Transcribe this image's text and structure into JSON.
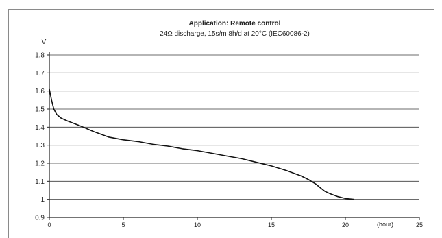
{
  "chart_data": {
    "type": "line",
    "title": "Application: Remote control",
    "subtitle": "24Ω discharge, 15s/m 8h/d at 20°C (IEC60086-2)",
    "ylabel": "V",
    "xlabel": "(hour)",
    "xlim": [
      0,
      25
    ],
    "ylim": [
      0.9,
      1.8
    ],
    "x_ticks": [
      0,
      5,
      10,
      15,
      20,
      25
    ],
    "y_ticks": [
      0.9,
      1,
      1.1,
      1.2,
      1.3,
      1.4,
      1.5,
      1.6,
      1.7,
      1.8
    ],
    "x_tick_labels": [
      "0",
      "5",
      "10",
      "15",
      "20",
      "25"
    ],
    "y_tick_labels": [
      "0.9",
      "1",
      "1.1",
      "1.2",
      "1.3",
      "1.4",
      "1.5",
      "1.6",
      "1.7",
      "1.8"
    ],
    "grid": "horizontal",
    "series": [
      {
        "x": [
          0,
          0.15,
          0.3,
          0.5,
          0.8,
          1.2,
          2,
          3,
          4,
          5,
          6,
          7,
          8,
          9,
          10,
          11,
          12,
          13,
          14,
          15,
          16,
          17,
          17.5,
          18,
          18.3,
          18.6,
          19,
          19.5,
          20,
          20.6
        ],
        "y": [
          1.61,
          1.55,
          1.5,
          1.47,
          1.45,
          1.435,
          1.41,
          1.375,
          1.345,
          1.33,
          1.32,
          1.305,
          1.295,
          1.28,
          1.27,
          1.255,
          1.24,
          1.225,
          1.205,
          1.185,
          1.16,
          1.13,
          1.11,
          1.085,
          1.065,
          1.045,
          1.03,
          1.015,
          1.005,
          1.0
        ]
      }
    ]
  }
}
